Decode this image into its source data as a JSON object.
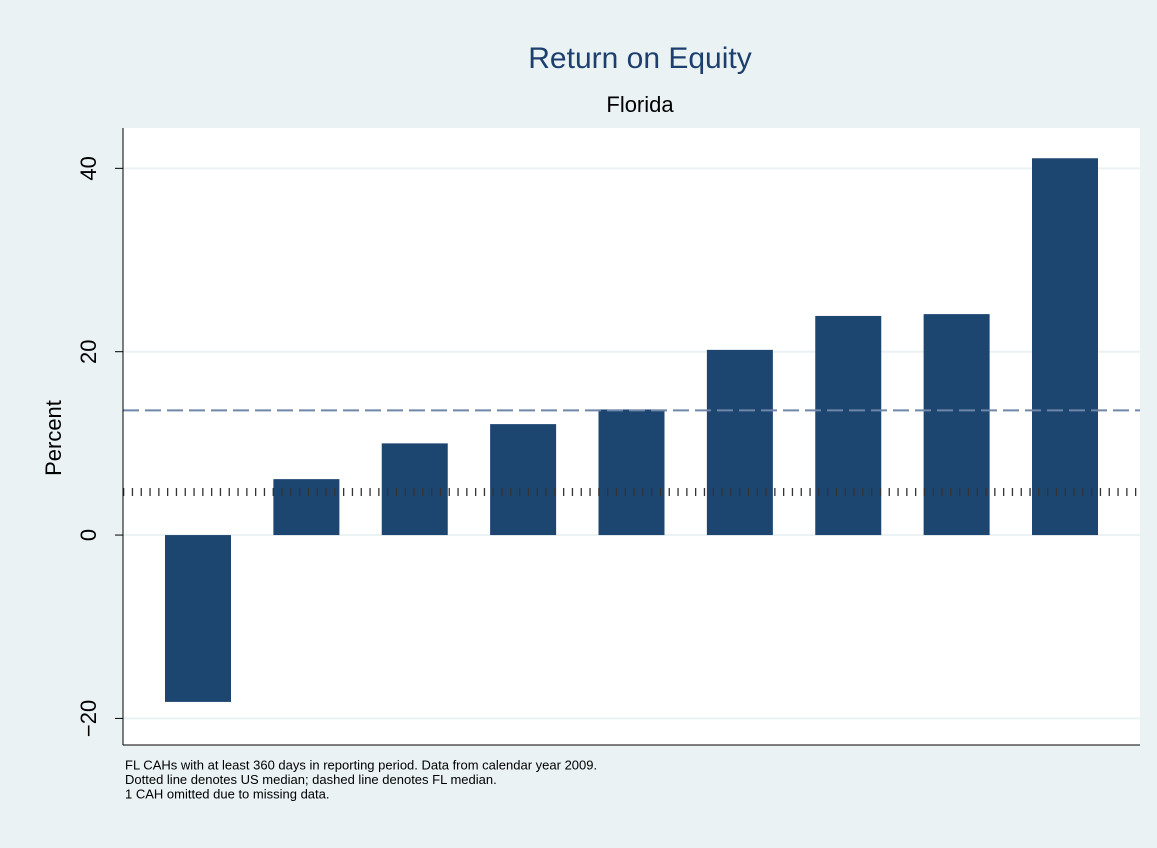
{
  "chart_data": {
    "type": "bar",
    "title": "Return on Equity",
    "subtitle": "Florida",
    "y_label": "Percent",
    "categories": [
      null,
      null,
      null,
      null,
      null,
      null,
      null,
      null,
      null
    ],
    "values": [
      -18.2,
      6.1,
      10.0,
      12.1,
      13.7,
      20.2,
      23.9,
      24.1,
      41.1
    ],
    "color": "#1c4670",
    "ylim": [
      -22.9,
      44.4
    ],
    "yticks": [
      {
        "value": -20,
        "label": "−20"
      },
      0,
      20,
      40
    ],
    "grid": true,
    "reference_lines": [
      {
        "value": 4.7,
        "style": "dotted",
        "color": "#333333"
      },
      {
        "value": 13.6,
        "style": "dashed",
        "color": "#6f87a8"
      }
    ],
    "notes": [
      "FL CAHs with at least 360 days in reporting period. Data from calendar year 2009.",
      "Dotted line denotes US median; dashed line denotes FL median.",
      "1 CAH omitted due to missing data."
    ]
  }
}
